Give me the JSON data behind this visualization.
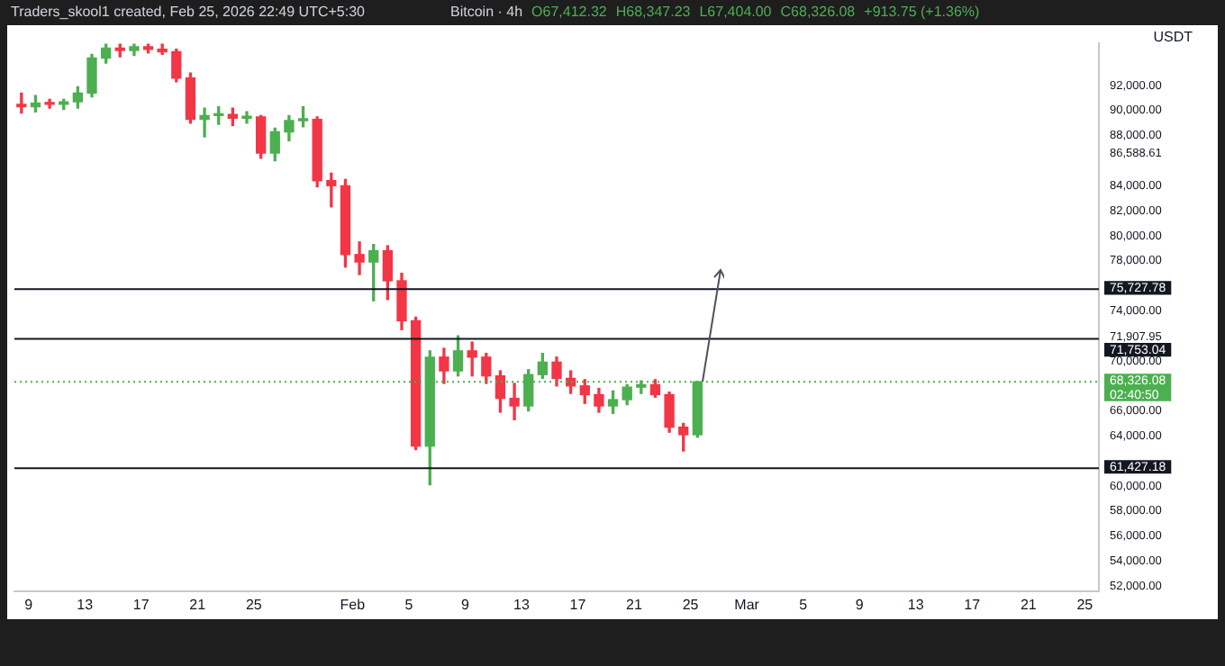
{
  "chart_data": {
    "type": "candlestick",
    "title": "Traders_skool1 created, Feb 25, 2026 22:49 UTC+5:30",
    "subtitle": "Bitcoin · 4h",
    "ylabel": "USDT",
    "annotations": [
      "O67,412.32",
      "H68,347.23",
      "L67,404.00",
      "C68,326.08",
      "+913.75 (+1.36%)"
    ],
    "x": [
      "2026-01-08T12:00",
      "2026-01-09T12:00",
      "2026-01-10T12:00",
      "2026-01-11T12:00",
      "2026-01-12T12:00",
      "2026-01-13T12:00",
      "2026-01-14T12:00",
      "2026-01-15T12:00",
      "2026-01-16T12:00",
      "2026-01-17T12:00",
      "2026-01-18T12:00",
      "2026-01-19T12:00",
      "2026-01-20T12:00",
      "2026-01-21T12:00",
      "2026-01-22T12:00",
      "2026-01-23T12:00",
      "2026-01-24T12:00",
      "2026-01-25T12:00",
      "2026-01-26T12:00",
      "2026-01-27T12:00",
      "2026-01-28T12:00",
      "2026-01-29T12:00",
      "2026-01-30T12:00",
      "2026-01-31T12:00",
      "2026-02-01T12:00",
      "2026-02-02T12:00",
      "2026-02-03T12:00",
      "2026-02-04T12:00",
      "2026-02-05T12:00",
      "2026-02-06T12:00",
      "2026-02-07T12:00",
      "2026-02-08T12:00",
      "2026-02-09T12:00",
      "2026-02-10T12:00",
      "2026-02-11T12:00",
      "2026-02-12T12:00",
      "2026-02-13T12:00",
      "2026-02-14T12:00",
      "2026-02-15T12:00",
      "2026-02-16T12:00",
      "2026-02-17T12:00",
      "2026-02-18T12:00",
      "2026-02-19T12:00",
      "2026-02-20T12:00",
      "2026-02-21T12:00",
      "2026-02-22T12:00",
      "2026-02-23T12:00",
      "2026-02-24T12:00",
      "2026-02-25T12:00"
    ],
    "ohlc": [
      [
        90500,
        91400,
        89800,
        90300
      ],
      [
        90300,
        91200,
        89900,
        90600
      ],
      [
        90600,
        90900,
        90200,
        90500
      ],
      [
        90500,
        90900,
        90100,
        90700
      ],
      [
        90700,
        91900,
        90200,
        91400
      ],
      [
        91400,
        94500,
        91100,
        94200
      ],
      [
        94200,
        95300,
        93800,
        95000
      ],
      [
        95000,
        95300,
        94300,
        94800
      ],
      [
        94800,
        95300,
        94400,
        95100
      ],
      [
        95100,
        95300,
        94600,
        94900
      ],
      [
        94900,
        95300,
        94500,
        94700
      ],
      [
        94700,
        94900,
        92300,
        92600
      ],
      [
        92600,
        93000,
        89000,
        89300
      ],
      [
        89300,
        90200,
        87900,
        89600
      ],
      [
        89600,
        90300,
        88900,
        89700
      ],
      [
        89700,
        90200,
        88800,
        89400
      ],
      [
        89400,
        89900,
        89000,
        89500
      ],
      [
        89500,
        89600,
        86200,
        86600
      ],
      [
        86600,
        88600,
        86000,
        88300
      ],
      [
        88300,
        89600,
        87600,
        89200
      ],
      [
        89200,
        90300,
        88700,
        89300
      ],
      [
        89300,
        89500,
        83900,
        84400
      ],
      [
        84400,
        85000,
        82300,
        84000
      ],
      [
        84000,
        84500,
        77500,
        78500
      ],
      [
        78500,
        79500,
        76900,
        77900
      ],
      [
        77900,
        79300,
        74800,
        78800
      ],
      [
        78800,
        79200,
        74900,
        76400
      ],
      [
        76400,
        77000,
        72500,
        73200
      ],
      [
        73200,
        73500,
        62900,
        63200
      ],
      [
        63200,
        70800,
        60100,
        70300
      ],
      [
        70300,
        71000,
        68200,
        69200
      ],
      [
        69200,
        72000,
        68800,
        70800
      ],
      [
        70800,
        71500,
        68800,
        70300
      ],
      [
        70300,
        70600,
        68200,
        68800
      ],
      [
        68800,
        69200,
        65900,
        67000
      ],
      [
        67000,
        68200,
        65300,
        66400
      ],
      [
        66400,
        69300,
        66000,
        68900
      ],
      [
        68900,
        70600,
        68600,
        69900
      ],
      [
        69900,
        70300,
        68000,
        68600
      ],
      [
        68600,
        69200,
        67400,
        68000
      ],
      [
        68000,
        68500,
        66600,
        67300
      ],
      [
        67300,
        67800,
        65900,
        66400
      ],
      [
        66400,
        67600,
        65800,
        66900
      ],
      [
        66900,
        68100,
        66500,
        67900
      ],
      [
        67900,
        68400,
        67400,
        68100
      ],
      [
        68100,
        68500,
        67100,
        67300
      ],
      [
        67300,
        67500,
        64300,
        64700
      ],
      [
        64700,
        65000,
        62800,
        64100
      ],
      [
        64100,
        68347.23,
        63900,
        68326.08
      ]
    ],
    "colors": [
      "#f23645",
      "#4caf50",
      "#f23645",
      "#4caf50",
      "#4caf50",
      "#4caf50",
      "#4caf50",
      "#f23645",
      "#4caf50",
      "#f23645",
      "#f23645",
      "#f23645",
      "#f23645",
      "#4caf50",
      "#4caf50",
      "#f23645",
      "#4caf50",
      "#f23645",
      "#4caf50",
      "#4caf50",
      "#4caf50",
      "#f23645",
      "#f23645",
      "#f23645",
      "#f23645",
      "#4caf50",
      "#f23645",
      "#f23645",
      "#f23645",
      "#4caf50",
      "#f23645",
      "#4caf50",
      "#f23645",
      "#f23645",
      "#f23645",
      "#f23645",
      "#4caf50",
      "#4caf50",
      "#f23645",
      "#f23645",
      "#f23645",
      "#f23645",
      "#4caf50",
      "#4caf50",
      "#4caf50",
      "#f23645",
      "#f23645",
      "#f23645",
      "#4caf50"
    ],
    "xlim": [
      "2026-01-08",
      "2026-03-26"
    ],
    "xticks": [
      {
        "value": "2026-01-09",
        "label": "9"
      },
      {
        "value": "2026-01-13",
        "label": "13"
      },
      {
        "value": "2026-01-17",
        "label": "17"
      },
      {
        "value": "2026-01-21",
        "label": "21"
      },
      {
        "value": "2026-01-25",
        "label": "25"
      },
      {
        "value": "2026-02-01",
        "label": "Feb"
      },
      {
        "value": "2026-02-05",
        "label": "5"
      },
      {
        "value": "2026-02-09",
        "label": "9"
      },
      {
        "value": "2026-02-13",
        "label": "13"
      },
      {
        "value": "2026-02-17",
        "label": "17"
      },
      {
        "value": "2026-02-21",
        "label": "21"
      },
      {
        "value": "2026-02-25",
        "label": "25"
      },
      {
        "value": "2026-03-01",
        "label": "Mar"
      },
      {
        "value": "2026-03-05",
        "label": "5"
      },
      {
        "value": "2026-03-09",
        "label": "9"
      },
      {
        "value": "2026-03-13",
        "label": "13"
      },
      {
        "value": "2026-03-17",
        "label": "17"
      },
      {
        "value": "2026-03-21",
        "label": "21"
      },
      {
        "value": "2026-03-25",
        "label": "25"
      }
    ],
    "ylim": [
      51600,
      95400
    ],
    "yticks": [
      {
        "value": 52000,
        "label": "52,000.00"
      },
      {
        "value": 54000,
        "label": "54,000.00"
      },
      {
        "value": 56000,
        "label": "56,000.00"
      },
      {
        "value": 58000,
        "label": "58,000.00"
      },
      {
        "value": 60000,
        "label": "60,000.00"
      },
      {
        "value": 64000,
        "label": "64,000.00"
      },
      {
        "value": 66000,
        "label": "66,000.00"
      },
      {
        "value": 70000,
        "label": "70,000.00"
      },
      {
        "value": 71907.95,
        "label": "71,907.95"
      },
      {
        "value": 74000,
        "label": "74,000.00"
      },
      {
        "value": 78000,
        "label": "78,000.00"
      },
      {
        "value": 80000,
        "label": "80,000.00"
      },
      {
        "value": 82000,
        "label": "82,000.00"
      },
      {
        "value": 84000,
        "label": "84,000.00"
      },
      {
        "value": 86588.61,
        "label": "86,588.61"
      },
      {
        "value": 88000,
        "label": "88,000.00"
      },
      {
        "value": 90000,
        "label": "90,000.00"
      },
      {
        "value": 92000,
        "label": "92,000.00"
      }
    ],
    "ref_lines": [
      {
        "axis": "y",
        "value": 75727.78,
        "label": "75,727.78",
        "color": "#131722"
      },
      {
        "axis": "y",
        "value": 71753.04,
        "label": "71,753.04",
        "color": "#131722"
      },
      {
        "axis": "y",
        "value": 61427.18,
        "label": "61,427.18",
        "color": "#131722"
      },
      {
        "axis": "y",
        "value": 68326.08,
        "label": "68,326.08\n02:40:50",
        "color": "#4caf50",
        "line_style": "dotted"
      }
    ],
    "grid": false,
    "legend": false
  }
}
